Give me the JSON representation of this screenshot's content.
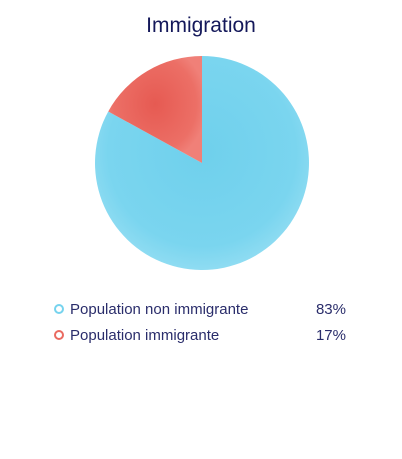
{
  "chart_data": {
    "type": "pie",
    "title": "Immigration",
    "categories": [
      "Population non immigrante",
      "Population immigrante"
    ],
    "values": [
      83,
      17
    ],
    "value_labels": [
      "83%",
      "17%"
    ],
    "colors": [
      "#76d3ee",
      "#ea6a60"
    ],
    "legend_position": "bottom"
  }
}
